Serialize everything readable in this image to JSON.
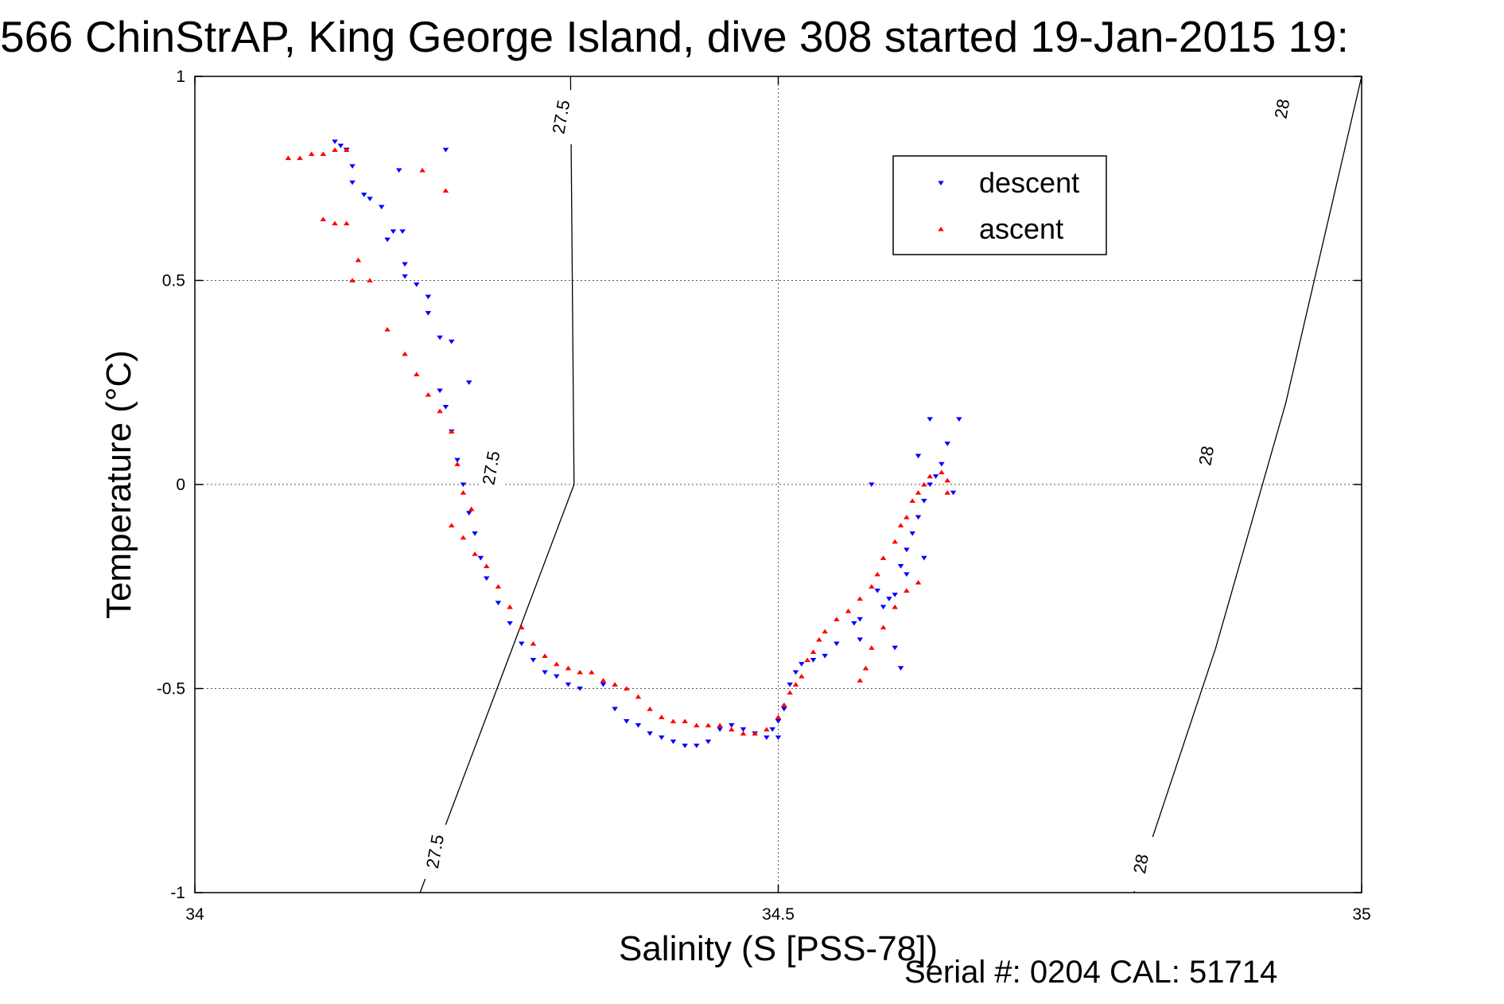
{
  "chart_data": {
    "type": "scatter",
    "title": "566 ChinStrAP, King George Island, dive 308 started 19-Jan-2015 19:",
    "xlabel": "Salinity (S [PSS-78])",
    "ylabel": "Temperature (°C)",
    "xlim": [
      34,
      35
    ],
    "ylim": [
      -1,
      1
    ],
    "xticks": [
      34,
      34.5,
      35
    ],
    "xtick_labels": [
      "34",
      "34.5",
      "35"
    ],
    "yticks": [
      -1,
      -0.5,
      0,
      0.5,
      1
    ],
    "ytick_labels": [
      "-1",
      "-0.5",
      "0",
      "0.5",
      "1"
    ],
    "grid": true,
    "legend_position": "upper-right",
    "isopycnals": [
      {
        "label": "27.5",
        "points": [
          [
            34.193,
            -1.0
          ],
          [
            34.325,
            0.0
          ],
          [
            34.322,
            1.0
          ]
        ],
        "label_at": [
          [
            34.207,
            -0.9
          ],
          [
            34.255,
            0.04
          ],
          [
            34.315,
            0.9
          ]
        ]
      },
      {
        "label": "28",
        "points": [
          [
            34.805,
            -1.0
          ],
          [
            34.875,
            -0.4
          ],
          [
            34.935,
            0.2
          ],
          [
            35.0,
            1.0
          ]
        ],
        "label_at": [
          [
            34.812,
            -0.93
          ],
          [
            34.868,
            0.07
          ],
          [
            34.933,
            0.92
          ]
        ]
      }
    ],
    "series": [
      {
        "name": "descent",
        "color": "#0000ff",
        "marker": "triangle-down",
        "x": [
          34.12,
          34.125,
          34.13,
          34.135,
          34.15,
          34.165,
          34.18,
          34.2,
          34.22,
          34.235,
          34.215,
          34.175,
          34.178,
          34.13,
          34.135,
          34.145,
          34.16,
          34.17,
          34.18,
          34.19,
          34.2,
          34.21,
          34.21,
          34.215,
          34.22,
          34.225,
          34.23,
          34.235,
          34.24,
          34.245,
          34.25,
          34.26,
          34.27,
          34.28,
          34.29,
          34.3,
          34.31,
          34.32,
          34.33,
          34.35,
          34.36,
          34.37,
          34.38,
          34.39,
          34.4,
          34.41,
          34.42,
          34.43,
          34.44,
          34.45,
          34.46,
          34.47,
          34.48,
          34.49,
          34.495,
          34.5,
          34.5,
          34.505,
          34.51,
          34.515,
          34.52,
          34.53,
          34.54,
          34.55,
          34.57,
          34.59,
          34.6,
          34.605,
          34.61,
          34.615,
          34.62,
          34.625,
          34.63,
          34.635,
          34.64,
          34.645,
          34.595,
          34.585,
          34.61,
          34.625,
          34.65,
          34.655,
          34.63,
          34.62,
          34.58,
          34.565,
          34.57,
          34.6,
          34.605
        ],
        "y": [
          0.84,
          0.83,
          0.82,
          0.78,
          0.7,
          0.6,
          0.51,
          0.46,
          0.35,
          0.25,
          0.82,
          0.77,
          0.62,
          0.82,
          0.74,
          0.71,
          0.68,
          0.62,
          0.54,
          0.49,
          0.42,
          0.36,
          0.23,
          0.19,
          0.13,
          0.06,
          0.0,
          -0.07,
          -0.12,
          -0.18,
          -0.23,
          -0.29,
          -0.34,
          -0.39,
          -0.43,
          -0.46,
          -0.47,
          -0.49,
          -0.5,
          -0.49,
          -0.55,
          -0.58,
          -0.59,
          -0.61,
          -0.62,
          -0.63,
          -0.64,
          -0.64,
          -0.63,
          -0.6,
          -0.59,
          -0.6,
          -0.61,
          -0.62,
          -0.6,
          -0.62,
          -0.58,
          -0.55,
          -0.49,
          -0.46,
          -0.44,
          -0.43,
          -0.42,
          -0.39,
          -0.33,
          -0.3,
          -0.27,
          -0.2,
          -0.16,
          -0.12,
          -0.08,
          -0.04,
          0.0,
          0.02,
          0.05,
          0.1,
          -0.28,
          -0.26,
          -0.22,
          -0.18,
          -0.02,
          0.16,
          0.16,
          0.07,
          0.0,
          -0.34,
          -0.38,
          -0.4,
          -0.45
        ]
      },
      {
        "name": "ascent",
        "color": "#ff0000",
        "marker": "triangle-up",
        "x": [
          34.08,
          34.09,
          34.1,
          34.11,
          34.12,
          34.13,
          34.11,
          34.12,
          34.13,
          34.14,
          34.15,
          34.135,
          34.165,
          34.18,
          34.19,
          34.2,
          34.21,
          34.22,
          34.195,
          34.215,
          34.225,
          34.23,
          34.237,
          34.22,
          34.23,
          34.24,
          34.25,
          34.26,
          34.27,
          34.28,
          34.29,
          34.3,
          34.31,
          34.32,
          34.33,
          34.34,
          34.35,
          34.36,
          34.37,
          34.38,
          34.39,
          34.4,
          34.41,
          34.42,
          34.43,
          34.44,
          34.45,
          34.46,
          34.47,
          34.48,
          34.49,
          34.5,
          34.505,
          34.51,
          34.515,
          34.52,
          34.525,
          34.53,
          34.535,
          34.54,
          34.55,
          34.56,
          34.57,
          34.58,
          34.585,
          34.59,
          34.6,
          34.605,
          34.61,
          34.615,
          34.62,
          34.625,
          34.63,
          34.64,
          34.645,
          34.645,
          34.57,
          34.575,
          34.58,
          34.59,
          34.6,
          34.61,
          34.62
        ],
        "y": [
          0.8,
          0.8,
          0.81,
          0.81,
          0.82,
          0.82,
          0.65,
          0.64,
          0.64,
          0.55,
          0.5,
          0.5,
          0.38,
          0.32,
          0.27,
          0.22,
          0.18,
          0.13,
          0.77,
          0.72,
          0.05,
          -0.02,
          -0.06,
          -0.1,
          -0.13,
          -0.17,
          -0.2,
          -0.25,
          -0.3,
          -0.35,
          -0.39,
          -0.42,
          -0.44,
          -0.45,
          -0.46,
          -0.46,
          -0.48,
          -0.49,
          -0.5,
          -0.52,
          -0.55,
          -0.57,
          -0.58,
          -0.58,
          -0.59,
          -0.59,
          -0.59,
          -0.6,
          -0.61,
          -0.61,
          -0.6,
          -0.57,
          -0.54,
          -0.51,
          -0.49,
          -0.47,
          -0.43,
          -0.41,
          -0.38,
          -0.36,
          -0.33,
          -0.31,
          -0.28,
          -0.25,
          -0.22,
          -0.18,
          -0.14,
          -0.1,
          -0.08,
          -0.04,
          -0.02,
          0.0,
          0.02,
          0.03,
          0.01,
          -0.02,
          -0.48,
          -0.45,
          -0.4,
          -0.35,
          -0.3,
          -0.26,
          -0.24
        ]
      }
    ]
  },
  "footer": {
    "serial_text": "Serial #: 0204  CAL: 51714"
  }
}
